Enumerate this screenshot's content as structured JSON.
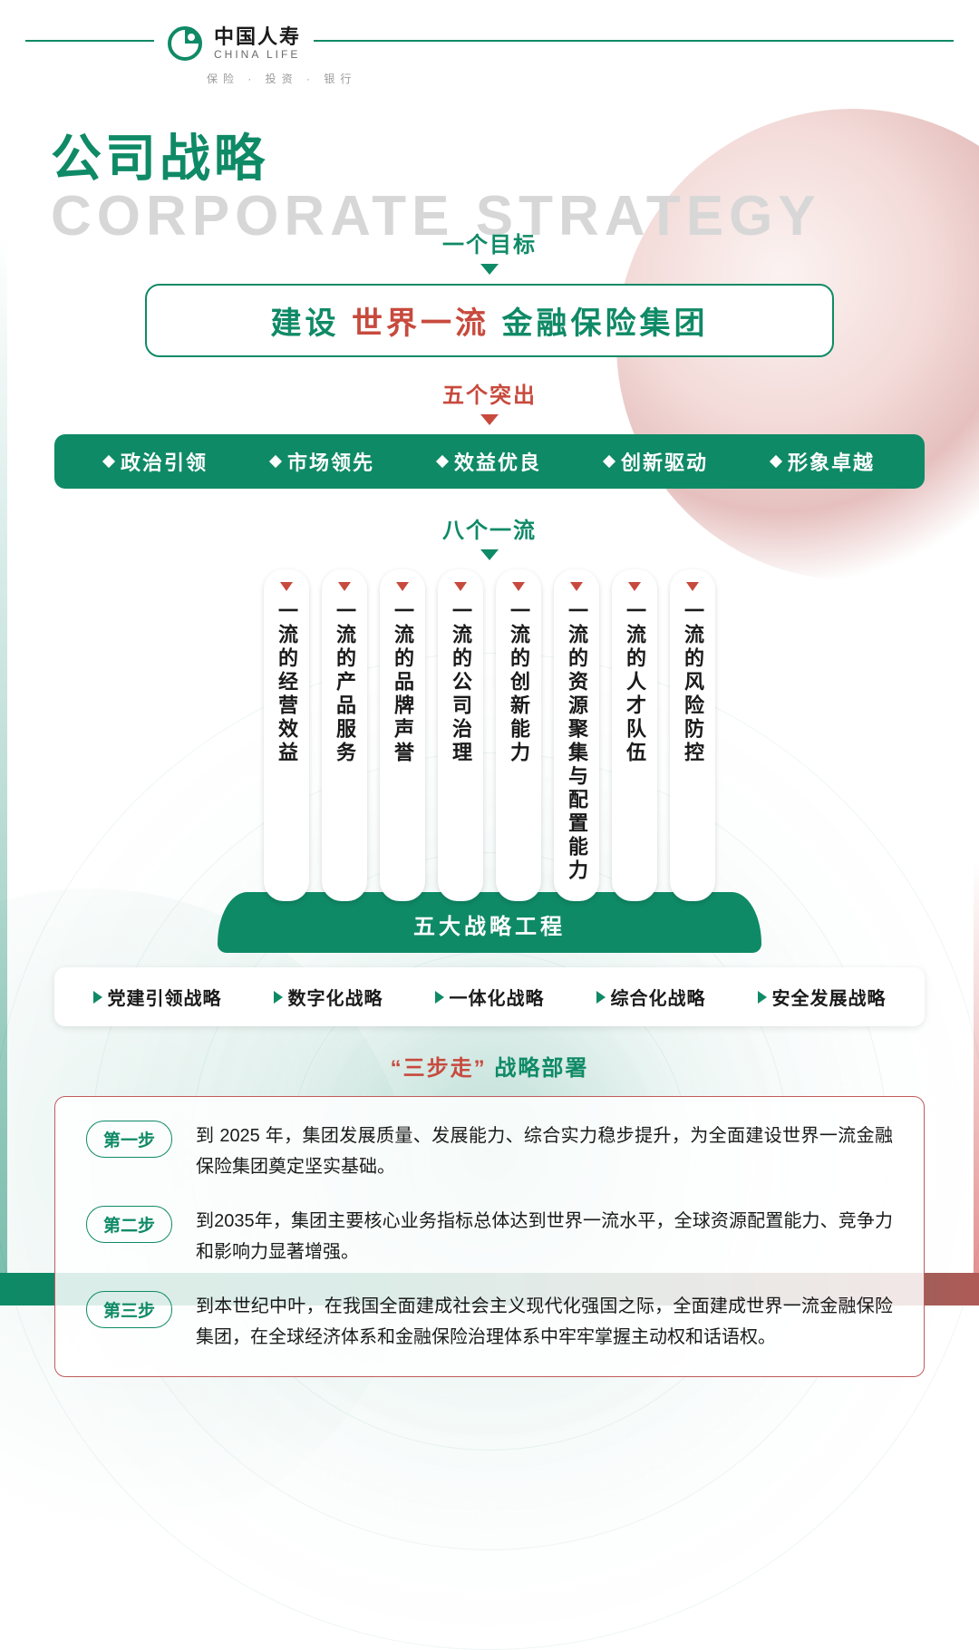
{
  "colors": {
    "brand_green": "#0f8a66",
    "accent_red": "#c74a3d",
    "title_grey": "#d7d7d7",
    "text_dark": "#1a1a1a",
    "step_border": "#c15b5b",
    "bg_white": "#ffffff"
  },
  "header": {
    "company_cn": "中国人寿",
    "company_en": "CHINA LIFE",
    "tagline": "保险 · 投资 · 银行"
  },
  "title": {
    "cn": "公司战略",
    "en": "CORPORATE STRATEGY"
  },
  "goal": {
    "label": "一个目标",
    "label_color": "#0f8a66",
    "text_parts": [
      {
        "t": "建设",
        "c": "#0f8a66"
      },
      {
        "t": "世界一流",
        "c": "#c74a3d"
      },
      {
        "t": "金融保险集团",
        "c": "#0f8a66"
      }
    ]
  },
  "five_outstanding": {
    "label": "五个突出",
    "label_color": "#c74a3d",
    "bg": "#0f8a66",
    "fg": "#ffffff",
    "items": [
      "政治引领",
      "市场领先",
      "效益优良",
      "创新驱动",
      "形象卓越"
    ]
  },
  "eight_firstclass": {
    "label": "八个一流",
    "label_color": "#0f8a66",
    "marker_color": "#c74a3d",
    "items": [
      "一流的经营效益",
      "一流的产品服务",
      "一流的品牌声誉",
      "一流的公司治理",
      "一流的创新能力",
      "一流的资源聚集与配置能力",
      "一流的人才队伍",
      "一流的风险防控"
    ]
  },
  "five_projects": {
    "banner": "五大战略工程",
    "banner_bg": "#0f8a66",
    "marker_color": "#0f8a66",
    "items": [
      "党建引领战略",
      "数字化战略",
      "一体化战略",
      "综合化战略",
      "安全发展战略"
    ]
  },
  "three_steps": {
    "title_parts": [
      {
        "t": "“三步走”",
        "c": "#c74a3d"
      },
      {
        "t": "战略部署",
        "c": "#0f8a66"
      }
    ],
    "steps": [
      {
        "label": "第一步",
        "text": "到 2025 年，集团发展质量、发展能力、综合实力稳步提升，为全面建设世界一流金融保险集团奠定坚实基础。"
      },
      {
        "label": "第二步",
        "text": "到2035年，集团主要核心业务指标总体达到世界一流水平，全球资源配置能力、竞争力和影响力显著增强。"
      },
      {
        "label": "第三步",
        "text": "到本世纪中叶，在我国全面建成社会主义现代化强国之际，全面建成世界一流金融保险集团，在全球经济体系和金融保险治理体系中牢牢掌握主动权和话语权。"
      }
    ]
  }
}
